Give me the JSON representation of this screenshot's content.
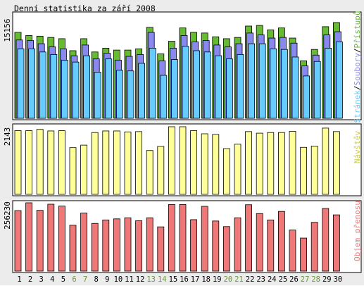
{
  "colors": {
    "background": "#ececec",
    "panel": "#ffffff",
    "pages": "#66ccff",
    "files": "#8888ee",
    "hits": "#66bb33",
    "visits": "#ffff99",
    "bandwidth": "#ee7777",
    "weekend_label": "#669933",
    "weekday_label": "#000000"
  },
  "chart_data": [
    {
      "type": "bar",
      "title": "Denní statistika za září 2008",
      "ylabel": "15156",
      "legend": [
        "Stránek",
        "Soubory",
        "Přístupů"
      ],
      "legend_separator": "/",
      "legend_placement": "right",
      "ylim": [
        0,
        15156
      ],
      "categories": [
        "1",
        "2",
        "3",
        "4",
        "5",
        "6",
        "7",
        "8",
        "9",
        "10",
        "11",
        "12",
        "13",
        "14",
        "15",
        "16",
        "17",
        "18",
        "19",
        "20",
        "21",
        "22",
        "23",
        "24",
        "25",
        "26",
        "27",
        "28",
        "29",
        "30"
      ],
      "weekend_days": [
        "6",
        "7",
        "13",
        "14",
        "20",
        "21",
        "27",
        "28"
      ],
      "series": [
        {
          "name": "Přístupů",
          "color": "#66bb33",
          "values": [
            13600,
            13100,
            13000,
            12800,
            12600,
            10700,
            12600,
            10500,
            11100,
            10800,
            10800,
            11000,
            14400,
            10200,
            12200,
            14300,
            13600,
            13500,
            12900,
            12600,
            12800,
            14600,
            14700,
            14000,
            14300,
            12700,
            9100,
            10900,
            14500,
            15156
          ]
        },
        {
          "name": "Soubory",
          "color": "#8888ee",
          "values": [
            12400,
            12300,
            11800,
            11300,
            11000,
            9900,
            11600,
            9400,
            10300,
            9200,
            9800,
            10100,
            13600,
            9100,
            11100,
            13100,
            12100,
            12300,
            11600,
            11300,
            11800,
            13500,
            13200,
            12700,
            12800,
            11900,
            8300,
            10000,
            13200,
            13700
          ]
        },
        {
          "name": "Stránek",
          "color": "#66ccff",
          "values": [
            11000,
            11000,
            10500,
            10100,
            9200,
            8900,
            9900,
            7300,
            9400,
            7600,
            7500,
            8700,
            11100,
            6800,
            9300,
            11400,
            10700,
            10500,
            9900,
            9400,
            10100,
            11800,
            11800,
            11000,
            10900,
            9700,
            6700,
            9000,
            11100,
            12100
          ]
        }
      ]
    },
    {
      "type": "bar",
      "ylabel": "2143",
      "legend": [
        "Návštěv"
      ],
      "legend_placement": "right",
      "ylim": [
        0,
        2143
      ],
      "categories": [
        "1",
        "2",
        "3",
        "4",
        "5",
        "6",
        "7",
        "8",
        "9",
        "10",
        "11",
        "12",
        "13",
        "14",
        "15",
        "16",
        "17",
        "18",
        "19",
        "20",
        "21",
        "22",
        "23",
        "24",
        "25",
        "26",
        "27",
        "28",
        "29",
        "30"
      ],
      "series": [
        {
          "name": "Návštěv",
          "color": "#ffff99",
          "values": [
            2020,
            2020,
            2060,
            2010,
            2020,
            1480,
            1560,
            1960,
            2010,
            2010,
            1980,
            1990,
            1390,
            1520,
            2143,
            2143,
            2020,
            1920,
            1900,
            1450,
            1590,
            1990,
            1940,
            1960,
            1960,
            2000,
            1490,
            1530,
            2100,
            1990
          ]
        }
      ]
    },
    {
      "type": "bar",
      "ylabel": "256230",
      "legend": [
        "Objem přenosu"
      ],
      "legend_placement": "right",
      "ylim": [
        0,
        256230
      ],
      "categories": [
        "1",
        "2",
        "3",
        "4",
        "5",
        "6",
        "7",
        "8",
        "9",
        "10",
        "11",
        "12",
        "13",
        "14",
        "15",
        "16",
        "17",
        "18",
        "19",
        "20",
        "21",
        "22",
        "23",
        "24",
        "25",
        "26",
        "27",
        "28",
        "29",
        "30"
      ],
      "series": [
        {
          "name": "Objem přenosu",
          "color": "#ee7777",
          "values": [
            227000,
            256230,
            228000,
            251000,
            244000,
            172000,
            218000,
            179000,
            192000,
            196000,
            200000,
            189000,
            200000,
            166000,
            250000,
            250000,
            193000,
            243000,
            188000,
            167000,
            200000,
            249000,
            216000,
            192000,
            224000,
            154000,
            124000,
            183000,
            235000,
            211000
          ]
        }
      ]
    }
  ]
}
